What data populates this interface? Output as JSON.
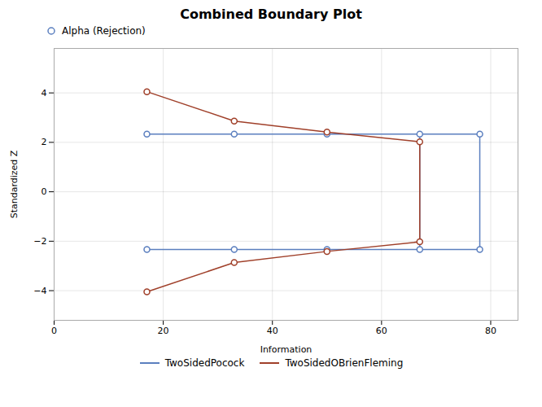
{
  "chart_data": {
    "type": "line",
    "title": "Combined Boundary Plot",
    "xlabel": "Information",
    "ylabel": "Standardized Z",
    "xlim": [
      0,
      85
    ],
    "ylim": [
      -5.2,
      5.8
    ],
    "xticks": [
      0,
      20,
      40,
      60,
      80
    ],
    "yticks": [
      -4,
      -2,
      0,
      2,
      4
    ],
    "grid": true,
    "legend": "bottom",
    "marker_legend": {
      "label": "Alpha (Rejection)",
      "marker": "o",
      "color": "#5b7fbf"
    },
    "series": [
      {
        "name": "TwoSidedPocock",
        "color": "#5b7fbf",
        "marker": "o",
        "x": [
          17,
          33,
          50,
          67,
          78
        ],
        "upper": [
          2.337,
          2.337,
          2.337,
          2.337,
          2.337
        ],
        "lower": [
          -2.337,
          -2.337,
          -2.337,
          -2.337,
          -2.337
        ],
        "connectors": [
          67,
          78
        ]
      },
      {
        "name": "TwoSidedOBrienFleming",
        "color": "#a0402a",
        "marker": "o",
        "x": [
          17,
          33,
          50,
          67
        ],
        "upper": [
          4.05,
          2.863,
          2.413,
          2.024
        ],
        "lower": [
          -4.05,
          -2.863,
          -2.413,
          -2.024
        ],
        "connectors": [
          67
        ]
      }
    ]
  }
}
